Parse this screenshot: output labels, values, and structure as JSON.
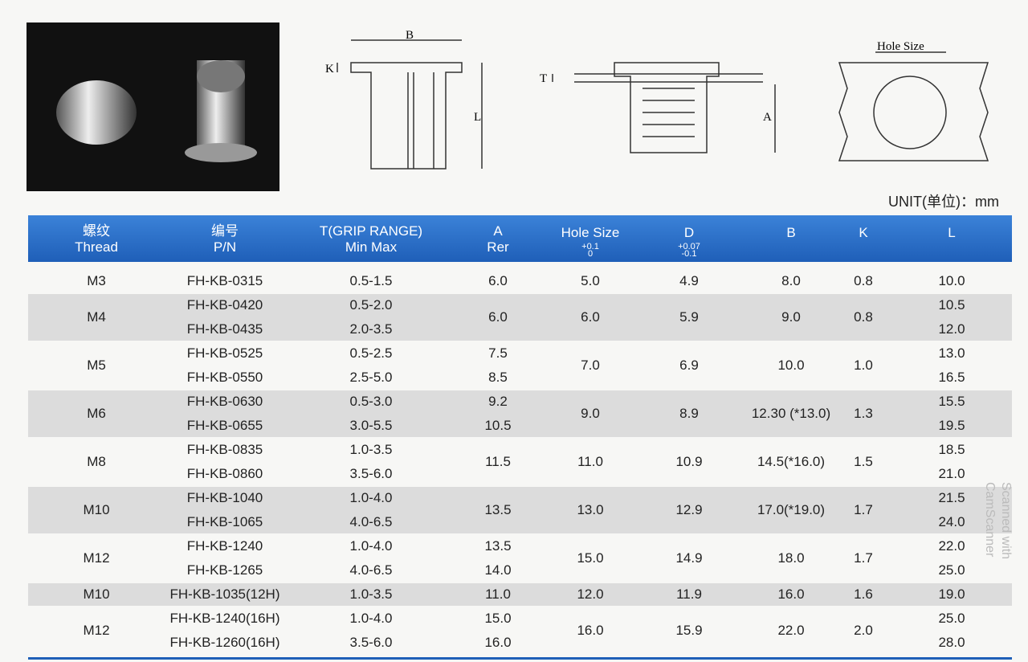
{
  "diagrams": {
    "b": "B",
    "k": "K",
    "l": "L",
    "t": "T",
    "a": "A",
    "hole_size": "Hole Size"
  },
  "unit": "UNIT(单位)：mm",
  "table": {
    "headers": [
      {
        "cn": "螺纹",
        "en": "Thread"
      },
      {
        "cn": "编号",
        "en": "P/N"
      },
      {
        "cn": "T(GRIP RANGE)",
        "en": "Min Max"
      },
      {
        "cn": "A",
        "en": "Rer"
      },
      {
        "cn": "Hole Size",
        "tol_up": "+0.1",
        "tol_down": "0"
      },
      {
        "cn": "D",
        "tol_up": "+0.07",
        "tol_down": "-0.1"
      },
      {
        "cn": "B"
      },
      {
        "cn": "K"
      },
      {
        "cn": "L"
      }
    ],
    "groups": [
      {
        "thread": "M3",
        "pn": [
          "FH-KB-0315"
        ],
        "t": [
          "0.5-1.5"
        ],
        "a": [
          "6.0"
        ],
        "hole": "5.0",
        "d": "4.9",
        "b": "8.0",
        "k": "0.8",
        "l": [
          "10.0"
        ]
      },
      {
        "thread": "M4",
        "pn": [
          "FH-KB-0420",
          "FH-KB-0435"
        ],
        "t": [
          "0.5-2.0",
          "2.0-3.5"
        ],
        "a": [
          "6.0"
        ],
        "hole": "6.0",
        "d": "5.9",
        "b": "9.0",
        "k": "0.8",
        "l": [
          "10.5",
          "12.0"
        ]
      },
      {
        "thread": "M5",
        "pn": [
          "FH-KB-0525",
          "FH-KB-0550"
        ],
        "t": [
          "0.5-2.5",
          "2.5-5.0"
        ],
        "a": [
          "7.5",
          "8.5"
        ],
        "hole": "7.0",
        "d": "6.9",
        "b": "10.0",
        "k": "1.0",
        "l": [
          "13.0",
          "16.5"
        ]
      },
      {
        "thread": "M6",
        "pn": [
          "FH-KB-0630",
          "FH-KB-0655"
        ],
        "t": [
          "0.5-3.0",
          "3.0-5.5"
        ],
        "a": [
          "9.2",
          "10.5"
        ],
        "hole": "9.0",
        "d": "8.9",
        "b": "12.30 (*13.0)",
        "k": "1.3",
        "l": [
          "15.5",
          "19.5"
        ]
      },
      {
        "thread": "M8",
        "pn": [
          "FH-KB-0835",
          "FH-KB-0860"
        ],
        "t": [
          "1.0-3.5",
          "3.5-6.0"
        ],
        "a": [
          "11.5"
        ],
        "hole": "11.0",
        "d": "10.9",
        "b": "14.5(*16.0)",
        "k": "1.5",
        "l": [
          "18.5",
          "21.0"
        ]
      },
      {
        "thread": "M10",
        "pn": [
          "FH-KB-1040",
          "FH-KB-1065"
        ],
        "t": [
          "1.0-4.0",
          "4.0-6.5"
        ],
        "a": [
          "13.5"
        ],
        "hole": "13.0",
        "d": "12.9",
        "b": "17.0(*19.0)",
        "k": "1.7",
        "l": [
          "21.5",
          "24.0"
        ]
      },
      {
        "thread": "M12",
        "pn": [
          "FH-KB-1240",
          "FH-KB-1265"
        ],
        "t": [
          "1.0-4.0",
          "4.0-6.5"
        ],
        "a": [
          "13.5",
          "14.0"
        ],
        "hole": "15.0",
        "d": "14.9",
        "b": "18.0",
        "k": "1.7",
        "l": [
          "22.0",
          "25.0"
        ]
      },
      {
        "thread": "M10",
        "pn": [
          "FH-KB-1035(12H)"
        ],
        "t": [
          "1.0-3.5"
        ],
        "a": [
          "11.0"
        ],
        "hole": "12.0",
        "d": "11.9",
        "b": "16.0",
        "k": "1.6",
        "l": [
          "19.0"
        ]
      },
      {
        "thread": "M12",
        "pn": [
          "FH-KB-1240(16H)",
          "FH-KB-1260(16H)"
        ],
        "t": [
          "1.0-4.0",
          "3.5-6.0"
        ],
        "a": [
          "15.0",
          "16.0"
        ],
        "hole": "16.0",
        "d": "15.9",
        "b": "22.0",
        "k": "2.0",
        "l": [
          "25.0",
          "28.0"
        ]
      }
    ]
  },
  "watermark": [
    "Scanned with",
    "CamScanner"
  ]
}
